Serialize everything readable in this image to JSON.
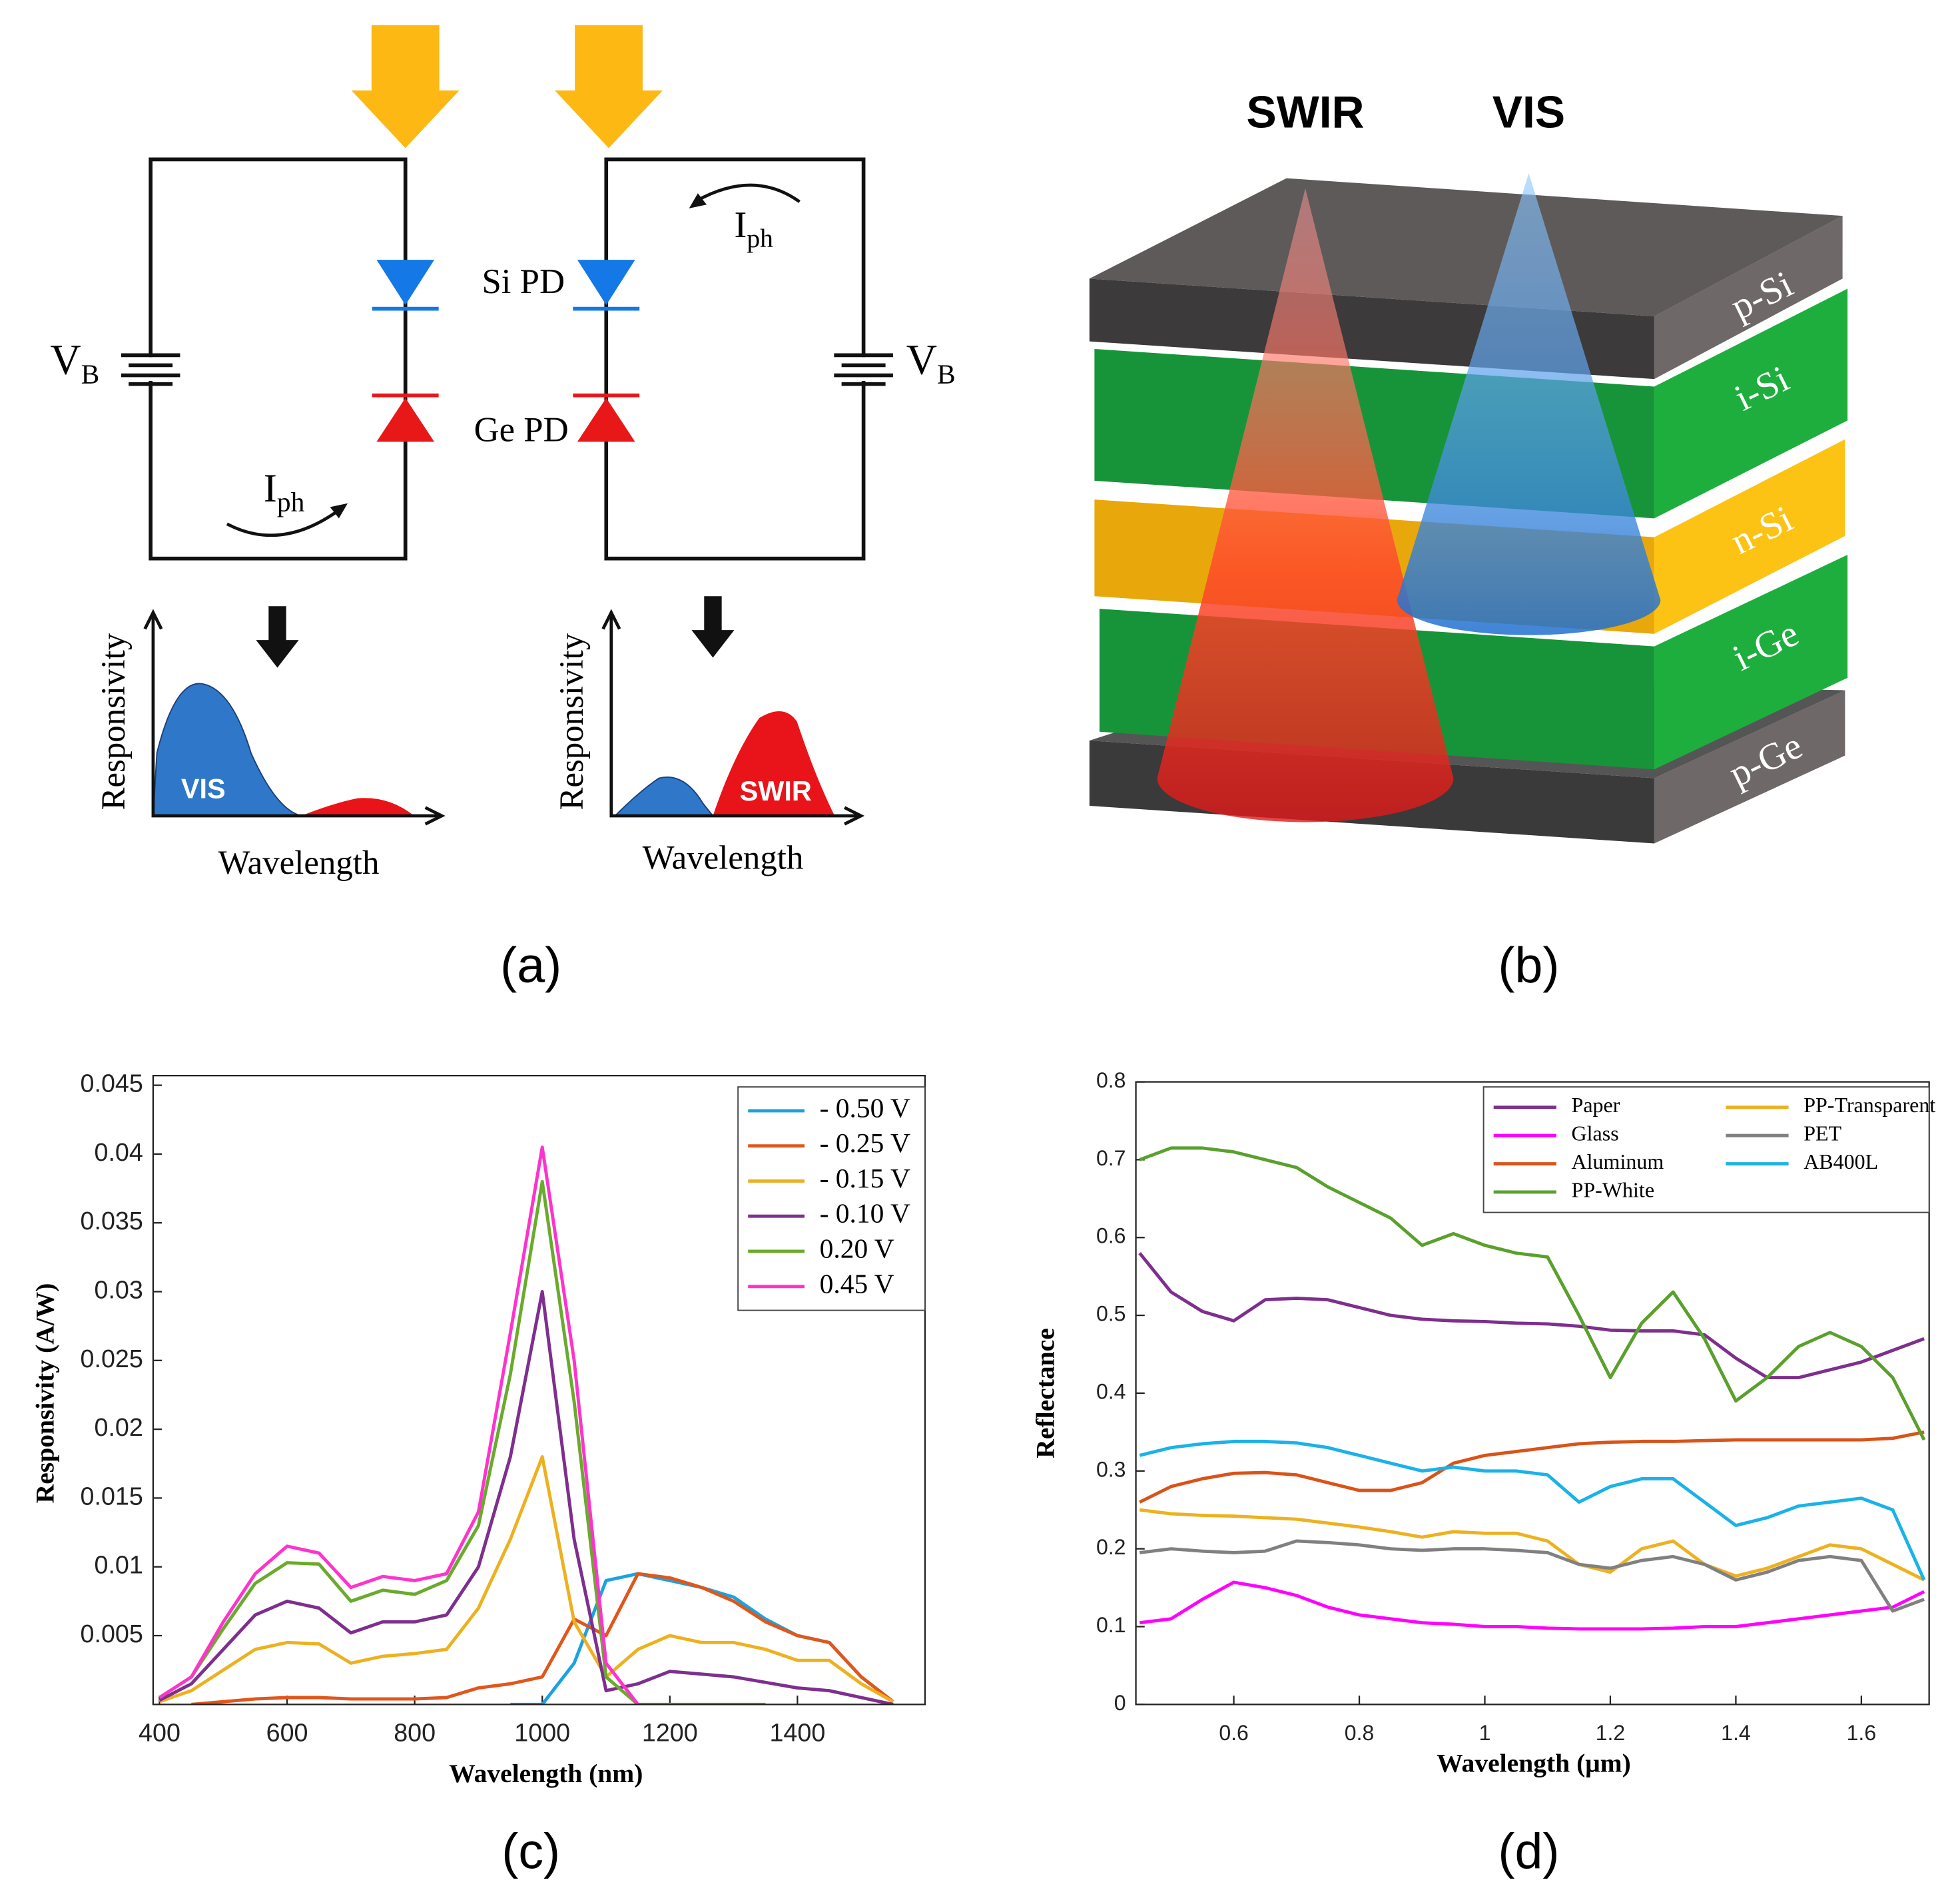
{
  "panel_labels": [
    "(a)",
    "(b)",
    "(c)",
    "(d)"
  ],
  "panel_a": {
    "left": {
      "bias": "V",
      "bias_sub": "B",
      "current": "I",
      "current_sub": "ph",
      "plot": {
        "y_label": "Responsivity",
        "x_label": "Wavelength",
        "band": "VIS"
      }
    },
    "right": {
      "bias": "V",
      "bias_sub": "B",
      "current": "I",
      "current_sub": "ph",
      "si_label": "Si PD",
      "ge_label": "Ge PD",
      "plot": {
        "y_label": "Responsivity",
        "x_label": "Wavelength",
        "band": "SWIR"
      }
    }
  },
  "panel_b": {
    "beams": [
      "SWIR",
      "VIS"
    ],
    "layers": [
      "p-Si",
      "i-Si",
      "n-Si",
      "i-Ge",
      "p-Ge"
    ]
  },
  "chart_data": [
    {
      "type": "line",
      "x_label": "Wavelength (nm)",
      "y_label": "Responsivity (A/W)",
      "legend": "upper right",
      "xlim": [
        390,
        1600
      ],
      "xticks": [
        400,
        600,
        800,
        1000,
        1200,
        1400
      ],
      "ylim": [
        0,
        0.0457
      ],
      "yticks": [
        0.005,
        0.01,
        0.015,
        0.02,
        0.025,
        0.03,
        0.035,
        0.04,
        0.045
      ],
      "x": [
        400,
        450,
        500,
        550,
        600,
        650,
        700,
        750,
        800,
        850,
        900,
        950,
        1000,
        1050,
        1100,
        1150,
        1200,
        1250,
        1300,
        1350,
        1400,
        1450,
        1500,
        1550
      ],
      "series": [
        {
          "name": "- 0.50 V",
          "color": "#1aa3e0",
          "values": [
            null,
            null,
            null,
            null,
            null,
            null,
            null,
            null,
            null,
            null,
            null,
            0,
            0,
            0.003,
            0.009,
            0.0095,
            0.009,
            0.0085,
            0.0078,
            0.0062,
            0.005,
            0.0045,
            0.002,
            0.0002
          ]
        },
        {
          "name": "- 0.25 V",
          "color": "#e0561b",
          "values": [
            null,
            0,
            0.0002,
            0.0004,
            0.0005,
            0.0005,
            0.0004,
            0.0004,
            0.0004,
            0.0005,
            0.0012,
            0.0015,
            0.002,
            0.0062,
            0.005,
            0.0095,
            0.0092,
            0.0085,
            0.0075,
            0.006,
            0.005,
            0.0045,
            0.002,
            0.0002
          ]
        },
        {
          "name": "- 0.15 V",
          "color": "#edb120",
          "values": [
            0.0002,
            0.001,
            0.0025,
            0.004,
            0.0045,
            0.0044,
            0.003,
            0.0035,
            0.0037,
            0.004,
            0.007,
            0.012,
            0.018,
            0.006,
            0.002,
            0.004,
            0.005,
            0.0045,
            0.0045,
            0.004,
            0.0032,
            0.0032,
            0.0015,
            0.0002
          ]
        },
        {
          "name": "- 0.10 V",
          "color": "#7e2f8e",
          "values": [
            0.0003,
            0.0015,
            0.004,
            0.0065,
            0.0075,
            0.007,
            0.0052,
            0.006,
            0.006,
            0.0065,
            0.01,
            0.018,
            0.03,
            0.012,
            0.001,
            0.0015,
            0.0024,
            0.0022,
            0.002,
            0.0016,
            0.0012,
            0.001,
            0.0005,
            0
          ]
        },
        {
          "name": "0.20 V",
          "color": "#6aaa2c",
          "values": [
            0.0005,
            0.002,
            0.0055,
            0.0088,
            0.0103,
            0.0102,
            0.0075,
            0.0083,
            0.008,
            0.009,
            0.013,
            0.024,
            0.038,
            0.022,
            0.002,
            0,
            0,
            0,
            0,
            0,
            null,
            null,
            null,
            null
          ]
        },
        {
          "name": "0.45 V",
          "color": "#ff33cc",
          "values": [
            0.0005,
            0.002,
            0.006,
            0.0095,
            0.0115,
            0.011,
            0.0085,
            0.0093,
            0.009,
            0.0095,
            0.014,
            0.027,
            0.0405,
            0.025,
            0.003,
            0,
            null,
            null,
            null,
            null,
            null,
            null,
            null,
            null
          ]
        }
      ]
    },
    {
      "type": "line",
      "x_label": "Wavelength (μm)",
      "y_label": "Reflectance",
      "legend": "upper right",
      "legend_ncol": 2,
      "xlim": [
        0.444,
        1.708
      ],
      "xticks": [
        0.6,
        0.8,
        1,
        1.2,
        1.4,
        1.6
      ],
      "ylim": [
        0,
        0.8
      ],
      "yticks": [
        0,
        0.1,
        0.2,
        0.3,
        0.4,
        0.5,
        0.6,
        0.7,
        0.8
      ],
      "x": [
        0.45,
        0.5,
        0.55,
        0.6,
        0.65,
        0.7,
        0.75,
        0.8,
        0.85,
        0.9,
        0.95,
        1,
        1.05,
        1.1,
        1.15,
        1.2,
        1.25,
        1.3,
        1.35,
        1.4,
        1.45,
        1.5,
        1.55,
        1.6,
        1.65,
        1.7
      ],
      "series": [
        {
          "name": "Paper",
          "color": "#7e2f8e",
          "values": [
            0.58,
            0.53,
            0.505,
            0.493,
            0.52,
            0.522,
            0.52,
            0.51,
            0.5,
            0.495,
            0.493,
            0.492,
            0.49,
            0.489,
            0.486,
            0.481,
            0.48,
            0.48,
            0.475,
            0.445,
            0.42,
            0.42,
            0.43,
            0.44,
            0.455,
            0.47
          ]
        },
        {
          "name": "Glass",
          "color": "#ff00ff",
          "values": [
            0.105,
            0.11,
            0.135,
            0.157,
            0.15,
            0.14,
            0.125,
            0.115,
            0.11,
            0.105,
            0.103,
            0.1,
            0.1,
            0.098,
            0.097,
            0.097,
            0.097,
            0.098,
            0.1,
            0.1,
            0.105,
            0.11,
            0.115,
            0.12,
            0.125,
            0.145
          ]
        },
        {
          "name": "Aluminum",
          "color": "#d95319",
          "values": [
            0.26,
            0.28,
            0.29,
            0.297,
            0.298,
            0.295,
            0.285,
            0.275,
            0.275,
            0.285,
            0.31,
            0.32,
            0.325,
            0.33,
            0.335,
            0.337,
            0.338,
            0.338,
            0.339,
            0.34,
            0.34,
            0.34,
            0.34,
            0.34,
            0.342,
            0.35
          ]
        },
        {
          "name": "PP-White",
          "color": "#5aa02c",
          "values": [
            0.7,
            0.715,
            0.715,
            0.71,
            0.7,
            0.69,
            0.665,
            0.645,
            0.625,
            0.59,
            0.605,
            0.59,
            0.58,
            0.575,
            0.5,
            0.42,
            0.49,
            0.53,
            0.47,
            0.39,
            0.42,
            0.46,
            0.478,
            0.46,
            0.42,
            0.34
          ]
        },
        {
          "name": "PP-Transparent",
          "color": "#edb120",
          "values": [
            0.25,
            0.245,
            0.243,
            0.242,
            0.24,
            0.238,
            0.233,
            0.228,
            0.222,
            0.215,
            0.222,
            0.22,
            0.22,
            0.21,
            0.18,
            0.17,
            0.2,
            0.21,
            0.18,
            0.165,
            0.175,
            0.19,
            0.205,
            0.2,
            0.18,
            0.16
          ]
        },
        {
          "name": "PET",
          "color": "#808080",
          "values": [
            0.195,
            0.2,
            0.197,
            0.195,
            0.197,
            0.21,
            0.208,
            0.205,
            0.2,
            0.198,
            0.2,
            0.2,
            0.198,
            0.195,
            0.18,
            0.175,
            0.185,
            0.19,
            0.18,
            0.16,
            0.17,
            0.185,
            0.19,
            0.185,
            0.12,
            0.135
          ]
        },
        {
          "name": "AB400L",
          "color": "#1ab2e8",
          "values": [
            0.32,
            0.33,
            0.335,
            0.338,
            0.338,
            0.336,
            0.33,
            0.32,
            0.31,
            0.3,
            0.305,
            0.3,
            0.3,
            0.295,
            0.26,
            0.28,
            0.29,
            0.29,
            0.26,
            0.23,
            0.24,
            0.255,
            0.26,
            0.265,
            0.25,
            0.16
          ]
        }
      ]
    }
  ]
}
